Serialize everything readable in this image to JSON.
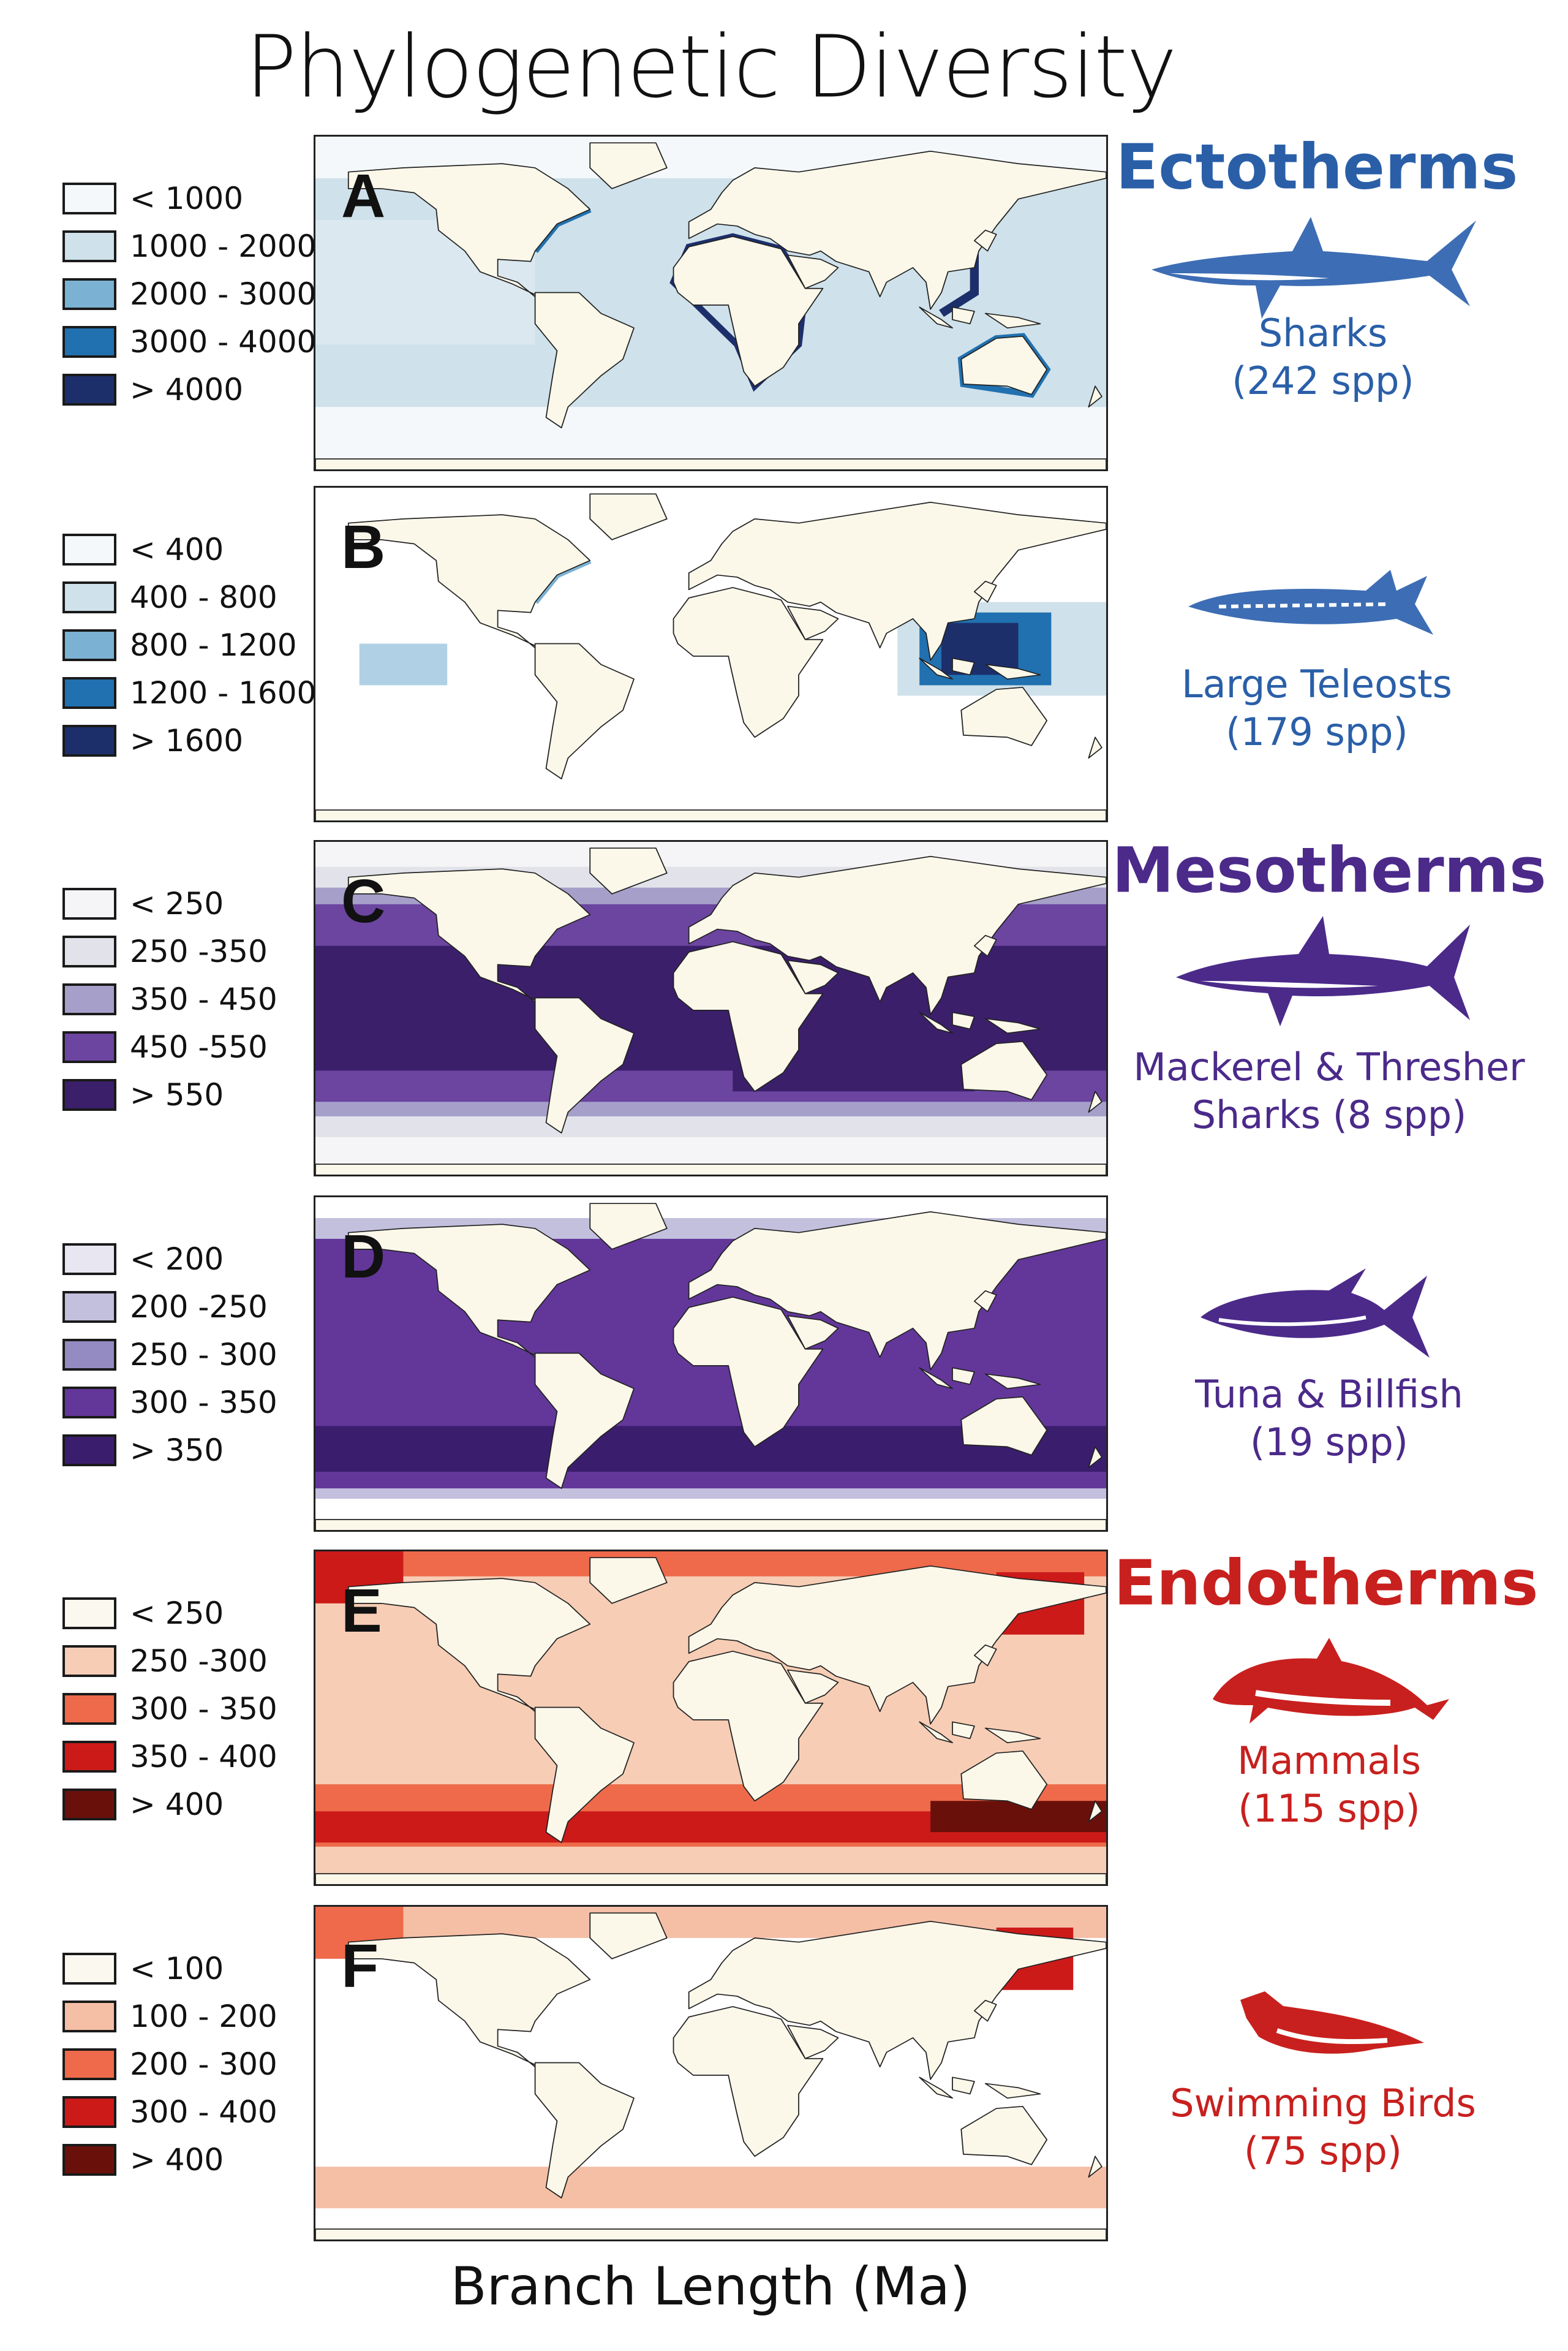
{
  "title": "Phylogenetic Diversity",
  "xlabel": "Branch Length (Ma)",
  "chart_data": {
    "type": "heatmap",
    "title": "Phylogenetic Diversity",
    "xlabel": "Branch Length (Ma)",
    "panels": [
      {
        "letter": "A",
        "group": "Ectotherms",
        "taxon": "Sharks",
        "count": "(242 spp)",
        "icon": "shark-icon",
        "legend": [
          {
            "label": "< 1000",
            "color": "#f4f8fb"
          },
          {
            "label": "1000 - 2000",
            "color": "#cfe1ea"
          },
          {
            "label": "2000 - 3000",
            "color": "#7bb2d3"
          },
          {
            "label": "3000 - 4000",
            "color": "#2171b0"
          },
          {
            "label": "> 4000",
            "color": "#1d2f6b"
          }
        ]
      },
      {
        "letter": "B",
        "taxon": "Large Teleosts",
        "count": "(179 spp)",
        "icon": "barracuda-icon",
        "legend": [
          {
            "label": "< 400",
            "color": "#f4f8fb"
          },
          {
            "label": "400 - 800",
            "color": "#cfe1ea"
          },
          {
            "label": "800 - 1200",
            "color": "#7bb2d3"
          },
          {
            "label": "1200 - 1600",
            "color": "#2171b0"
          },
          {
            "label": "> 1600",
            "color": "#1d2f6b"
          }
        ]
      },
      {
        "letter": "C",
        "group": "Mesotherms",
        "taxon": "Mackerel & Thresher",
        "count": "Sharks (8 spp)",
        "icon": "mako-shark-icon",
        "legend": [
          {
            "label": "< 250",
            "color": "#f5f5f7"
          },
          {
            "label": "250 -350",
            "color": "#e2e2ea"
          },
          {
            "label": "350 - 450",
            "color": "#a59fc9"
          },
          {
            "label": "450 -550",
            "color": "#6b45a0"
          },
          {
            "label": "> 550",
            "color": "#3b1f6b"
          }
        ]
      },
      {
        "letter": "D",
        "taxon": "Tuna & Billfish",
        "count": "(19 spp)",
        "icon": "tuna-icon",
        "legend": [
          {
            "label": "< 200",
            "color": "#e8e6f1"
          },
          {
            "label": "200 -250",
            "color": "#c3c0de"
          },
          {
            "label": "250 - 300",
            "color": "#938bc1"
          },
          {
            "label": "300 - 350",
            "color": "#63379a"
          },
          {
            "label": "> 350",
            "color": "#3b1d6e"
          }
        ]
      },
      {
        "letter": "E",
        "group": "Endotherms",
        "taxon": "Mammals",
        "count": "(115 spp)",
        "icon": "dolphin-icon",
        "legend": [
          {
            "label": "< 250",
            "color": "#fbf8f0"
          },
          {
            "label": "250 -300",
            "color": "#f7cdb5"
          },
          {
            "label": "300 - 350",
            "color": "#ee6a4a"
          },
          {
            "label": "350 - 400",
            "color": "#cc1a19"
          },
          {
            "label": "> 400",
            "color": "#6a100b"
          }
        ]
      },
      {
        "letter": "F",
        "taxon": "Swimming Birds",
        "count": "(75 spp)",
        "icon": "penguin-icon",
        "legend": [
          {
            "label": "< 100",
            "color": "#fbf8f0"
          },
          {
            "label": "100 - 200",
            "color": "#f5bfa6"
          },
          {
            "label": "200 - 300",
            "color": "#ee6a4a"
          },
          {
            "label": "300 - 400",
            "color": "#cc1a19"
          },
          {
            "label": "> 400",
            "color": "#6a100b"
          }
        ]
      }
    ]
  },
  "colors": {
    "ectotherms": "#2a5fa8",
    "mesotherms": "#4b2a8a",
    "endotherms": "#c8201e",
    "land": "#fbf8ea"
  }
}
